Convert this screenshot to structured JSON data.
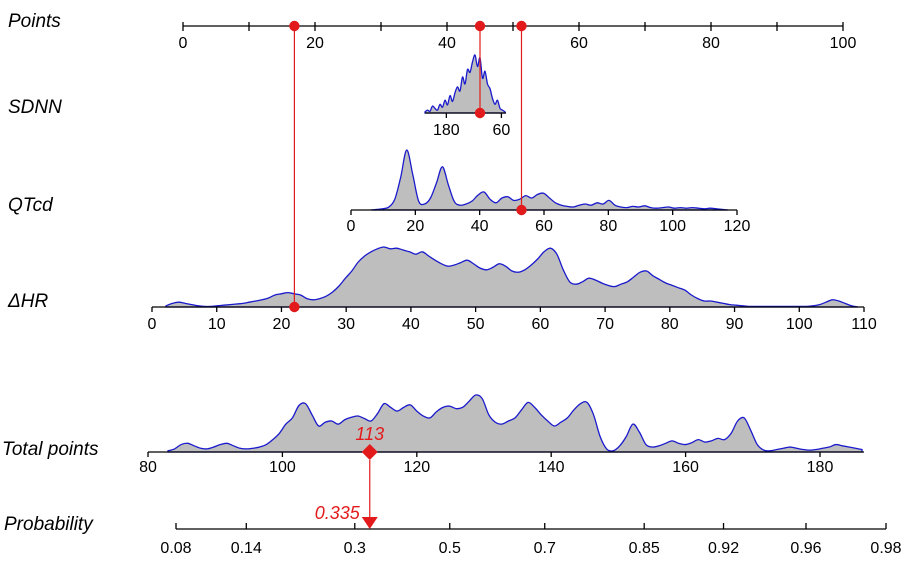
{
  "chart_data": {
    "type": "nomogram",
    "rows": [
      {
        "key": "points",
        "label": "Points",
        "ticks": [
          "0",
          "20",
          "40",
          "60",
          "80",
          "100"
        ],
        "range": [
          0,
          100
        ]
      },
      {
        "key": "sdnn",
        "label": "SDNN",
        "ticks": [
          "180",
          "60"
        ],
        "tick_values": [
          180,
          60
        ],
        "range": [
          220,
          50
        ],
        "density": [
          0.02,
          0.05,
          0.03,
          0.12,
          0.08,
          0.05,
          0.15,
          0.1,
          0.22,
          0.14,
          0.3,
          0.2,
          0.35,
          0.45,
          0.38,
          0.62,
          0.5,
          0.75,
          0.7,
          0.88,
          1.0,
          0.8,
          0.95,
          0.6,
          0.72,
          0.5,
          0.42,
          0.25,
          0.15,
          0.22,
          0.08,
          0.05,
          0.02
        ]
      },
      {
        "key": "qtcd",
        "label": "QTcd",
        "ticks": [
          "0",
          "20",
          "40",
          "60",
          "80",
          "100",
          "120"
        ],
        "range": [
          0,
          120
        ],
        "density": [
          0,
          0.01,
          0.02,
          0.05,
          0.18,
          0.55,
          1.0,
          0.6,
          0.15,
          0.1,
          0.2,
          0.45,
          0.72,
          0.42,
          0.14,
          0.08,
          0.1,
          0.15,
          0.25,
          0.3,
          0.18,
          0.12,
          0.2,
          0.22,
          0.16,
          0.18,
          0.24,
          0.2,
          0.26,
          0.28,
          0.2,
          0.12,
          0.08,
          0.06,
          0.05,
          0.08,
          0.1,
          0.08,
          0.12,
          0.1,
          0.16,
          0.08,
          0.05,
          0.04,
          0.06,
          0.05,
          0.07,
          0.04,
          0.03,
          0.04,
          0.05,
          0.03,
          0.04,
          0.03,
          0.04,
          0.03,
          0.02,
          0.03,
          0.02,
          0.01,
          0
        ]
      },
      {
        "key": "dhr",
        "label": "ΔHR",
        "ticks": [
          "0",
          "10",
          "20",
          "30",
          "40",
          "50",
          "60",
          "70",
          "80",
          "90",
          "100",
          "110"
        ],
        "range": [
          0,
          110
        ],
        "density": [
          0.02,
          0.06,
          0.08,
          0.06,
          0.04,
          0.02,
          0.01,
          0.01,
          0.02,
          0.03,
          0.04,
          0.05,
          0.06,
          0.08,
          0.1,
          0.12,
          0.15,
          0.2,
          0.22,
          0.24,
          0.22,
          0.2,
          0.14,
          0.12,
          0.14,
          0.18,
          0.25,
          0.35,
          0.48,
          0.6,
          0.75,
          0.85,
          0.92,
          0.97,
          1.0,
          0.97,
          0.98,
          0.95,
          0.92,
          0.88,
          0.92,
          0.85,
          0.78,
          0.72,
          0.68,
          0.7,
          0.74,
          0.78,
          0.72,
          0.65,
          0.62,
          0.66,
          0.72,
          0.68,
          0.6,
          0.58,
          0.62,
          0.7,
          0.8,
          0.92,
          0.98,
          0.88,
          0.62,
          0.42,
          0.38,
          0.42,
          0.48,
          0.45,
          0.4,
          0.36,
          0.34,
          0.38,
          0.42,
          0.5,
          0.58,
          0.6,
          0.52,
          0.46,
          0.4,
          0.36,
          0.32,
          0.28,
          0.2,
          0.14,
          0.1,
          0.1,
          0.08,
          0.06,
          0.04,
          0.03,
          0.02,
          0.01,
          0.01,
          0.01,
          0.01,
          0.01,
          0.01,
          0.01,
          0.01,
          0.01,
          0.01,
          0.02,
          0.04,
          0.08,
          0.12,
          0.1,
          0.06,
          0.02,
          0
        ]
      },
      {
        "key": "total",
        "label": "Total points",
        "ticks": [
          "80",
          "100",
          "120",
          "140",
          "160",
          "180"
        ],
        "range": [
          80,
          186
        ],
        "density": [
          0.02,
          0.05,
          0.12,
          0.14,
          0.1,
          0.06,
          0.05,
          0.08,
          0.12,
          0.14,
          0.1,
          0.06,
          0.05,
          0.06,
          0.08,
          0.12,
          0.2,
          0.3,
          0.45,
          0.55,
          0.75,
          0.78,
          0.6,
          0.42,
          0.48,
          0.5,
          0.45,
          0.52,
          0.56,
          0.58,
          0.54,
          0.5,
          0.62,
          0.78,
          0.72,
          0.66,
          0.72,
          0.76,
          0.66,
          0.58,
          0.55,
          0.65,
          0.72,
          0.74,
          0.7,
          0.72,
          0.82,
          0.92,
          0.86,
          0.6,
          0.48,
          0.45,
          0.5,
          0.55,
          0.68,
          0.8,
          0.72,
          0.6,
          0.5,
          0.42,
          0.48,
          0.55,
          0.68,
          0.78,
          0.8,
          0.6,
          0.25,
          0.05,
          0.02,
          0.1,
          0.25,
          0.45,
          0.32,
          0.12,
          0.08,
          0.1,
          0.14,
          0.18,
          0.14,
          0.12,
          0.15,
          0.2,
          0.16,
          0.18,
          0.22,
          0.2,
          0.3,
          0.5,
          0.55,
          0.35,
          0.12,
          0.03,
          0.02,
          0.04,
          0.06,
          0.08,
          0.06,
          0.04,
          0.03,
          0.04,
          0.06,
          0.08,
          0.12,
          0.1,
          0.08,
          0.06,
          0.04
        ]
      },
      {
        "key": "probability",
        "label": "Probability",
        "ticks": [
          "0.08",
          "0.14",
          "0.3",
          "0.5",
          "0.7",
          "0.85",
          "0.92",
          "0.96",
          "0.98"
        ],
        "tick_values": [
          0.08,
          0.14,
          0.3,
          0.5,
          0.7,
          0.85,
          0.92,
          0.96,
          0.98
        ]
      }
    ],
    "patient": {
      "sdnn_points": 45,
      "qtcd_value": 53,
      "dhr_value": 22,
      "total_points": 113,
      "probability": 0.335,
      "total_label": "113",
      "probability_label": "0.335"
    }
  }
}
